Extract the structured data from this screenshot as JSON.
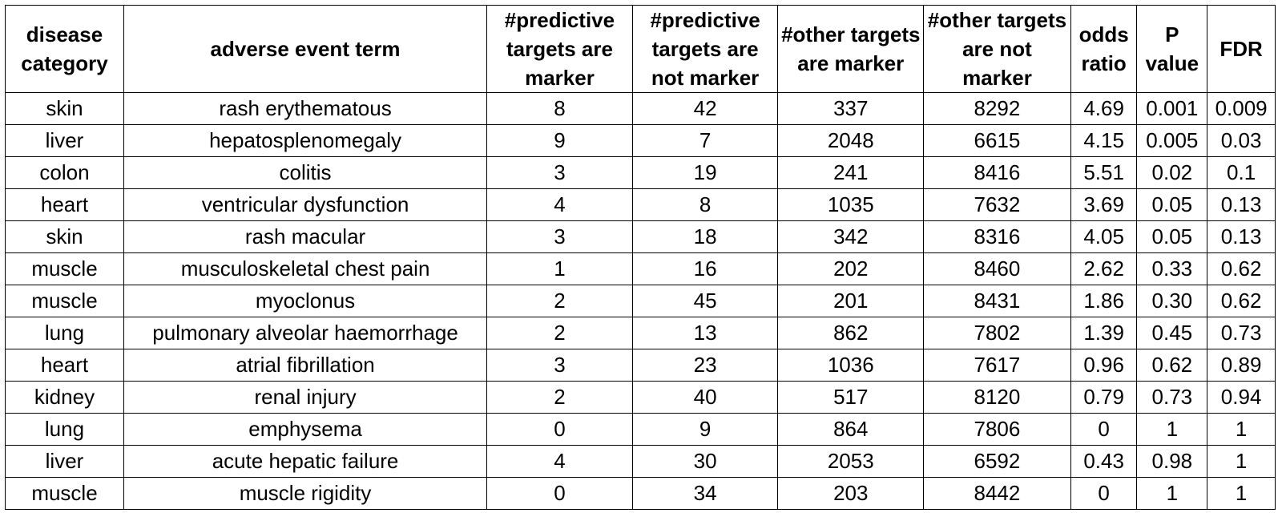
{
  "table": {
    "headers": [
      "disease category",
      "adverse event term",
      "#predictive targets are marker",
      "#predictive targets are not marker",
      "#other targets are marker",
      "#other targets are not marker",
      "odds ratio",
      "P value",
      "FDR"
    ],
    "rows": [
      [
        "skin",
        "rash erythematous",
        "8",
        "42",
        "337",
        "8292",
        "4.69",
        "0.001",
        "0.009"
      ],
      [
        "liver",
        "hepatosplenomegaly",
        "9",
        "7",
        "2048",
        "6615",
        "4.15",
        "0.005",
        "0.03"
      ],
      [
        "colon",
        "colitis",
        "3",
        "19",
        "241",
        "8416",
        "5.51",
        "0.02",
        "0.1"
      ],
      [
        "heart",
        "ventricular dysfunction",
        "4",
        "8",
        "1035",
        "7632",
        "3.69",
        "0.05",
        "0.13"
      ],
      [
        "skin",
        "rash macular",
        "3",
        "18",
        "342",
        "8316",
        "4.05",
        "0.05",
        "0.13"
      ],
      [
        "muscle",
        "musculoskeletal chest pain",
        "1",
        "16",
        "202",
        "8460",
        "2.62",
        "0.33",
        "0.62"
      ],
      [
        "muscle",
        "myoclonus",
        "2",
        "45",
        "201",
        "8431",
        "1.86",
        "0.30",
        "0.62"
      ],
      [
        "lung",
        "pulmonary alveolar haemorrhage",
        "2",
        "13",
        "862",
        "7802",
        "1.39",
        "0.45",
        "0.73"
      ],
      [
        "heart",
        "atrial fibrillation",
        "3",
        "23",
        "1036",
        "7617",
        "0.96",
        "0.62",
        "0.89"
      ],
      [
        "kidney",
        "renal injury",
        "2",
        "40",
        "517",
        "8120",
        "0.79",
        "0.73",
        "0.94"
      ],
      [
        "lung",
        "emphysema",
        "0",
        "9",
        "864",
        "7806",
        "0",
        "1",
        "1"
      ],
      [
        "liver",
        "acute hepatic failure",
        "4",
        "30",
        "2053",
        "6592",
        "0.43",
        "0.98",
        "1"
      ],
      [
        "muscle",
        "muscle rigidity",
        "0",
        "34",
        "203",
        "8442",
        "0",
        "1",
        "1"
      ]
    ]
  }
}
